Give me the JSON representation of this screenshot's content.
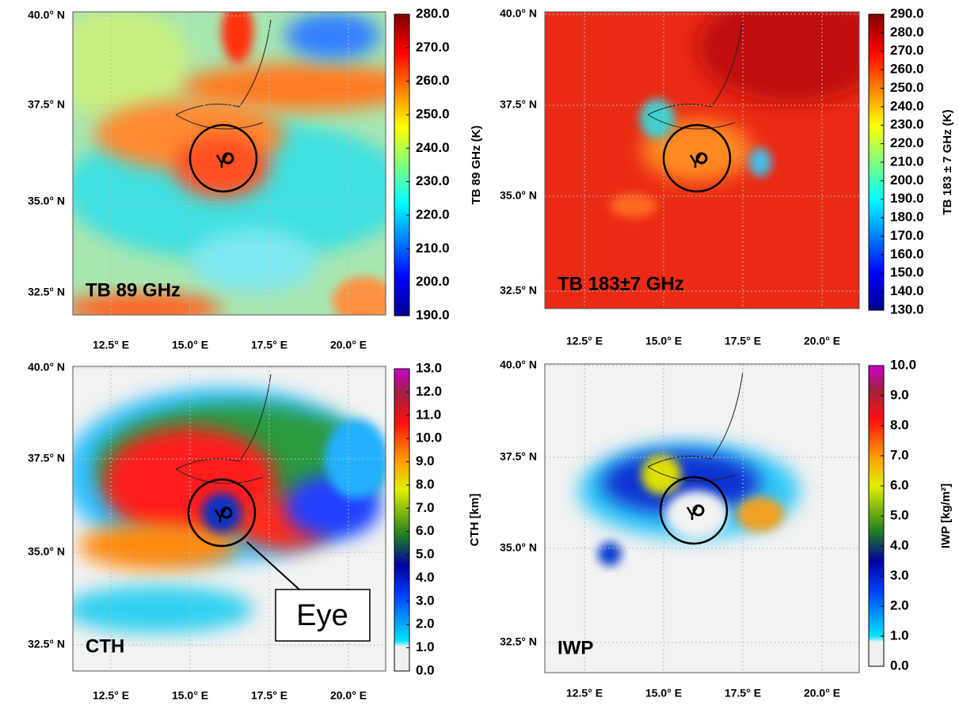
{
  "panels": [
    {
      "label": "TB 89 GHz",
      "colorbar": {
        "label": "TB 89 GHz (K)",
        "lim": [
          190,
          280
        ],
        "ticks": [
          {
            "value": 190,
            "label": "190.0"
          },
          {
            "value": 200,
            "label": "200.0"
          },
          {
            "value": 210,
            "label": "210.0"
          },
          {
            "value": 220,
            "label": "220.0"
          },
          {
            "value": 230,
            "label": "230.0"
          },
          {
            "value": 240,
            "label": "240.0"
          },
          {
            "value": 250,
            "label": "250.0"
          },
          {
            "value": 260,
            "label": "260.0"
          },
          {
            "value": 270,
            "label": "270.0"
          },
          {
            "value": 280,
            "label": "280.0"
          }
        ]
      },
      "lat_labels": [
        "40.0° N",
        "37.5° N",
        "35.0° N",
        "32.5° N"
      ],
      "lon_labels": [
        "12.5° E",
        "15.0° E",
        "17.5° E",
        "20.0° E"
      ]
    },
    {
      "label": "TB 183±7 GHz",
      "colorbar": {
        "label": "TB 183 ± 7 GHz (K)",
        "lim": [
          130,
          290
        ],
        "ticks": [
          {
            "value": 130,
            "label": "130.0"
          },
          {
            "value": 140,
            "label": "140.0"
          },
          {
            "value": 150,
            "label": "150.0"
          },
          {
            "value": 160,
            "label": "160.0"
          },
          {
            "value": 170,
            "label": "170.0"
          },
          {
            "value": 180,
            "label": "180.0"
          },
          {
            "value": 190,
            "label": "190.0"
          },
          {
            "value": 200,
            "label": "200.0"
          },
          {
            "value": 210,
            "label": "210.0"
          },
          {
            "value": 220,
            "label": "220.0"
          },
          {
            "value": 230,
            "label": "230.0"
          },
          {
            "value": 240,
            "label": "240.0"
          },
          {
            "value": 250,
            "label": "250.0"
          },
          {
            "value": 260,
            "label": "260.0"
          },
          {
            "value": 270,
            "label": "270.0"
          },
          {
            "value": 280,
            "label": "280.0"
          },
          {
            "value": 290,
            "label": "290.0"
          }
        ]
      },
      "lat_labels": [
        "40.0° N",
        "37.5° N",
        "35.0° N",
        "32.5° N"
      ],
      "lon_labels": [
        "12.5° E",
        "15.0° E",
        "17.5° E",
        "20.0° E"
      ]
    },
    {
      "label": "CTH",
      "colorbar": {
        "label": "CTH [km]",
        "lim": [
          0,
          13
        ],
        "ticks": [
          {
            "value": 0,
            "label": "0.0"
          },
          {
            "value": 1,
            "label": "1.0"
          },
          {
            "value": 2,
            "label": "2.0"
          },
          {
            "value": 3,
            "label": "3.0"
          },
          {
            "value": 4,
            "label": "4.0"
          },
          {
            "value": 5,
            "label": "5.0"
          },
          {
            "value": 6,
            "label": "6.0"
          },
          {
            "value": 7,
            "label": "7.0"
          },
          {
            "value": 8,
            "label": "8.0"
          },
          {
            "value": 9,
            "label": "9.0"
          },
          {
            "value": 10,
            "label": "10.0"
          },
          {
            "value": 11,
            "label": "11.0"
          },
          {
            "value": 12,
            "label": "12.0"
          },
          {
            "value": 13,
            "label": "13.0"
          }
        ]
      },
      "lat_labels": [
        "40.0° N",
        "37.5° N",
        "35.0° N",
        "32.5° N"
      ],
      "lon_labels": [
        "12.5° E",
        "15.0° E",
        "17.5° E",
        "20.0° E"
      ]
    },
    {
      "label": "IWP",
      "colorbar": {
        "label": "IWP [kg/m²]",
        "lim": [
          0,
          10
        ],
        "ticks": [
          {
            "value": 0,
            "label": "0.0"
          },
          {
            "value": 1,
            "label": "1.0"
          },
          {
            "value": 2,
            "label": "2.0"
          },
          {
            "value": 3,
            "label": "3.0"
          },
          {
            "value": 4,
            "label": "4.0"
          },
          {
            "value": 5,
            "label": "5.0"
          },
          {
            "value": 6,
            "label": "6.0"
          },
          {
            "value": 7,
            "label": "7.0"
          },
          {
            "value": 8,
            "label": "8.0"
          },
          {
            "value": 9,
            "label": "9.0"
          },
          {
            "value": 10,
            "label": "10.0"
          }
        ]
      },
      "lat_labels": [
        "40.0° N",
        "37.5° N",
        "35.0° N",
        "32.5° N"
      ],
      "lon_labels": [
        "12.5° E",
        "15.0° E",
        "17.5° E",
        "20.0° E"
      ]
    }
  ],
  "annotation": "Eye"
}
